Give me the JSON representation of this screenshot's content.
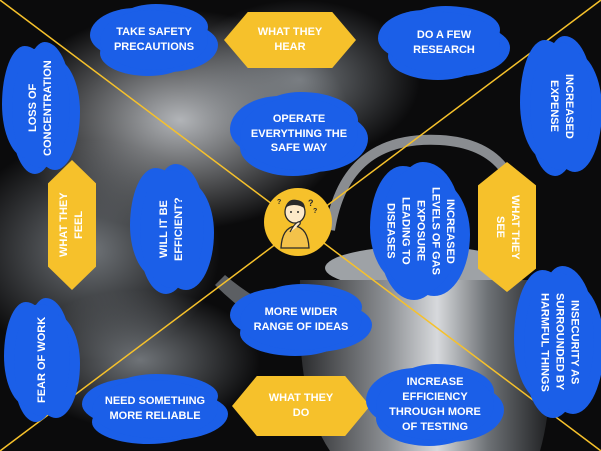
{
  "quadrant_labels": {
    "hear": "WHAT THEY HEAR",
    "feel": "WHAT THEY FEEL",
    "see": "WHAT THEY SEE",
    "do": "WHAT THEY DO"
  },
  "notes": {
    "take_safety": "TAKE SAFETY PRECAUTIONS",
    "do_research": "DO A FEW RESEARCH",
    "operate_safe": "OPERATE EVERYTHING THE SAFE WAY",
    "loss_concentration": "LOSS OF CONCENTRATION",
    "increased_expense": "INCREASED EXPENSE",
    "efficient": "WILL IT BE EFFICIENT?",
    "gas_exposure": "INCREASED LEVELS OF GAS EXPOSURE LEADING TO DISEASES",
    "wider_range": "MORE WIDER RANGE OF IDEAS",
    "fear_work": "FEAR OF WORK",
    "insecurity": "INSECURITY AS SURROUNDED BY HARMFUL THINGS",
    "reliable": "NEED SOMETHING MORE RELIABLE",
    "increase_efficiency": "INCREASE EFFICIENCY THROUGH MORE OF TESTING"
  },
  "colors": {
    "cloud": "#1b5fe8",
    "hex": "#f6c12b",
    "divider": "#f6c12b",
    "background": "#0b0b0c"
  },
  "center_icon": "thinking-person-icon"
}
